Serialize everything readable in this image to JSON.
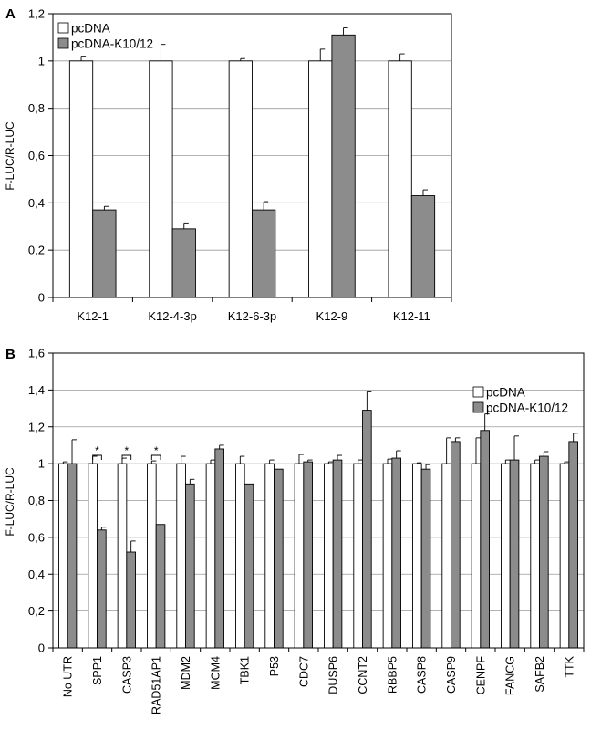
{
  "chart_data": [
    {
      "type": "bar",
      "panel_label": "A",
      "title": "",
      "xlabel": "",
      "ylabel": "F-LUC/R-LUC",
      "ylim": [
        0,
        1.2
      ],
      "yticks": [
        "0",
        "0,2",
        "0,4",
        "0,6",
        "0,8",
        "1",
        "1,2"
      ],
      "grid": true,
      "legend_position": "top-left",
      "categories": [
        "K12-1",
        "K12-4-3p",
        "K12-6-3p",
        "K12-9",
        "K12-11"
      ],
      "series": [
        {
          "name": "pcDNA",
          "color": "#ffffff",
          "values": [
            1.0,
            1.0,
            1.0,
            1.0,
            1.0
          ],
          "errors": [
            0.02,
            0.07,
            0.01,
            0.05,
            0.03
          ]
        },
        {
          "name": "pcDNA-K10/12",
          "color": "#8c8c8c",
          "values": [
            0.37,
            0.29,
            0.37,
            1.11,
            0.43
          ],
          "errors": [
            0.015,
            0.025,
            0.035,
            0.03,
            0.025
          ]
        }
      ]
    },
    {
      "type": "bar",
      "panel_label": "B",
      "title": "",
      "xlabel": "",
      "ylabel": "F-LUC/R-LUC",
      "ylim": [
        0,
        1.6
      ],
      "yticks": [
        "0",
        "0,2",
        "0,4",
        "0,6",
        "0,8",
        "1",
        "1,2",
        "1,4",
        "1,6"
      ],
      "grid": true,
      "legend_position": "top-right",
      "categories": [
        "No UTR",
        "SPP1",
        "CASP3",
        "RAD51AP1",
        "MDM2",
        "MCM4",
        "TBK1",
        "P53",
        "CDC7",
        "DUSP6",
        "CCNT2",
        "RBBP5",
        "CASP8",
        "CASP9",
        "CENPF",
        "FANCG",
        "SAFB2",
        "TTK"
      ],
      "series": [
        {
          "name": "pcDNA",
          "color": "#ffffff",
          "values": [
            1,
            1,
            1,
            1,
            1,
            1,
            1,
            1,
            1,
            1,
            1,
            1,
            1,
            1,
            1,
            1,
            1,
            1
          ],
          "errors": [
            0.01,
            0.04,
            0.03,
            0.015,
            0.04,
            0.02,
            0.04,
            0.02,
            0.05,
            0.01,
            0.02,
            0.025,
            0.005,
            0.14,
            0.14,
            0.02,
            0.02,
            0.01
          ]
        },
        {
          "name": "pcDNA-K10/12",
          "color": "#8c8c8c",
          "values": [
            1.0,
            0.64,
            0.52,
            0.67,
            0.89,
            1.08,
            0.89,
            0.97,
            1.01,
            1.02,
            1.29,
            1.03,
            0.97,
            1.12,
            1.18,
            1.02,
            1.04,
            1.12
          ],
          "errors": [
            0.13,
            0.015,
            0.06,
            0.0,
            0.025,
            0.02,
            0.0,
            0.0,
            0.01,
            0.025,
            0.1,
            0.04,
            0.025,
            0.02,
            0.09,
            0.13,
            0.025,
            0.045
          ]
        }
      ],
      "significance_marker": "*",
      "significant_categories": [
        "SPP1",
        "CASP3",
        "RAD51AP1"
      ]
    }
  ]
}
